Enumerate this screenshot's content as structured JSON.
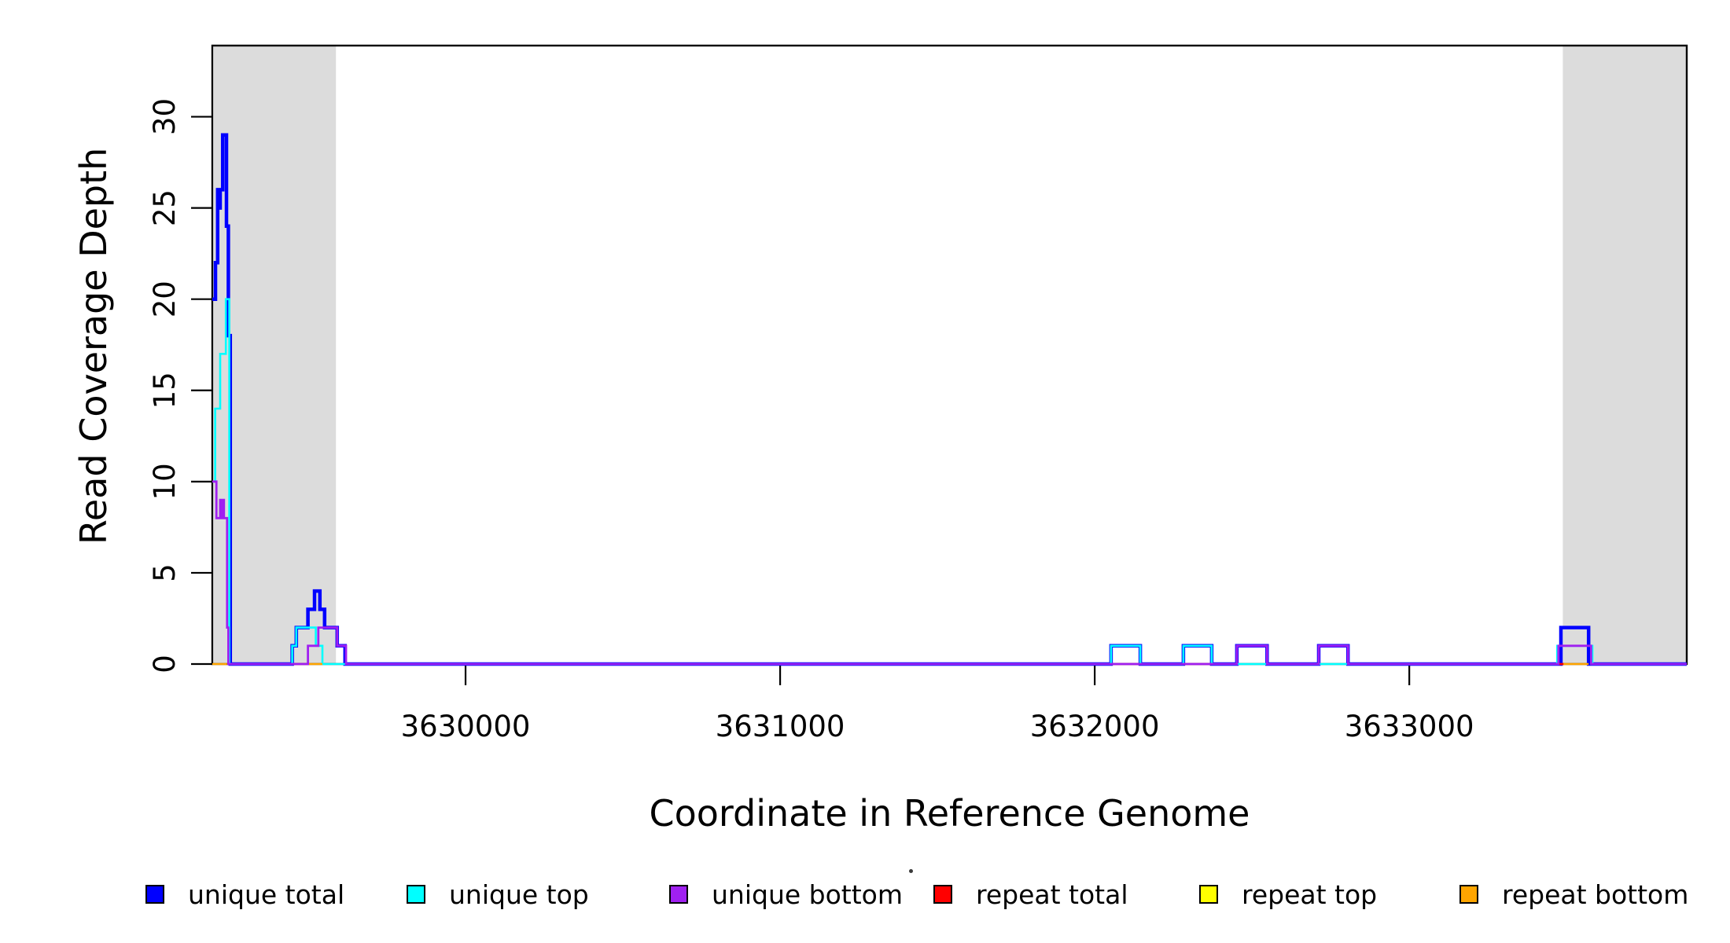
{
  "chart_data": {
    "type": "line",
    "subtype": "step-coverage",
    "title": "",
    "xlabel": "Coordinate in Reference Genome",
    "ylabel": "Read Coverage Depth",
    "xlim": [
      3629195,
      3633882
    ],
    "ylim": [
      0,
      33.9
    ],
    "grid": false,
    "legend_position": "bottom",
    "xticks": [
      {
        "value": 3630000,
        "label": "3630000"
      },
      {
        "value": 3631000,
        "label": "3631000"
      },
      {
        "value": 3632000,
        "label": "3632000"
      },
      {
        "value": 3633000,
        "label": "3633000"
      }
    ],
    "yticks": [
      {
        "value": 0,
        "label": "0"
      },
      {
        "value": 5,
        "label": "5"
      },
      {
        "value": 10,
        "label": "10"
      },
      {
        "value": 15,
        "label": "15"
      },
      {
        "value": 20,
        "label": "20"
      },
      {
        "value": 25,
        "label": "25"
      },
      {
        "value": 30,
        "label": "30"
      }
    ],
    "shaded_regions": [
      {
        "name": "left-repeat-region",
        "x1": 3629200,
        "x2": 3629588,
        "color": "#DCDCDC"
      },
      {
        "name": "right-repeat-region",
        "x1": 3633488,
        "x2": 3633880,
        "color": "#DCDCDC"
      }
    ],
    "series": [
      {
        "name": "unique total",
        "color": "#0000FF",
        "line_width": 4.5,
        "subpaths": [
          [
            [
              3629195,
              3629205,
              20
            ],
            [
              3629205,
              3629212,
              22
            ],
            [
              3629212,
              3629217,
              26
            ],
            [
              3629217,
              3629220,
              25
            ],
            [
              3629220,
              3629228,
              26
            ],
            [
              3629228,
              3629240,
              29
            ],
            [
              3629240,
              3629246,
              24
            ],
            [
              3629246,
              3629252,
              18
            ],
            [
              3629252,
              3629449,
              0
            ],
            [
              3629449,
              3629462,
              1
            ],
            [
              3629462,
              3629499,
              2
            ],
            [
              3629499,
              3629520,
              3
            ],
            [
              3629520,
              3629537,
              4
            ],
            [
              3629537,
              3629552,
              3
            ],
            [
              3629552,
              3629592,
              2
            ],
            [
              3629592,
              3629617,
              1
            ],
            [
              3629617,
              3632052,
              0
            ],
            [
              3632052,
              3632145,
              1
            ],
            [
              3632145,
              3632282,
              0
            ],
            [
              3632282,
              3632372,
              1
            ],
            [
              3632372,
              3632452,
              0
            ],
            [
              3632452,
              3632548,
              1
            ],
            [
              3632548,
              3632712,
              0
            ],
            [
              3632712,
              3632805,
              1
            ],
            [
              3632805,
              3633482,
              0
            ],
            [
              3633482,
              3633570,
              2
            ],
            [
              3633570,
              3633882,
              0
            ]
          ]
        ]
      },
      {
        "name": "unique top",
        "color": "#00FFFF",
        "line_width": 2.6,
        "subpaths": [
          [
            [
              3629195,
              3629204,
              10
            ],
            [
              3629204,
              3629220,
              14
            ],
            [
              3629220,
              3629238,
              17
            ],
            [
              3629238,
              3629249,
              20
            ],
            [
              3629249,
              3629449,
              0
            ],
            [
              3629449,
              3629462,
              1
            ],
            [
              3629462,
              3629524,
              2
            ],
            [
              3629524,
              3629545,
              1
            ],
            [
              3629545,
              3632052,
              0
            ],
            [
              3632052,
              3632145,
              1
            ],
            [
              3632145,
              3632282,
              0
            ],
            [
              3632282,
              3632372,
              1
            ],
            [
              3632372,
              3633470,
              0
            ],
            [
              3633470,
              3633582,
              1
            ],
            [
              3633582,
              3633882,
              0
            ]
          ]
        ]
      },
      {
        "name": "repeat total",
        "color": "#FF0000",
        "line_width": 2.6,
        "subpaths": [
          [
            [
              3629449,
              3629500,
              0
            ]
          ],
          [
            [
              3632052,
              3632145,
              0
            ]
          ],
          [
            [
              3632282,
              3632372,
              0
            ]
          ],
          [
            [
              3633472,
              3633492,
              0
            ]
          ]
        ]
      },
      {
        "name": "repeat top",
        "color": "#FFFF00",
        "line_width": 2.6,
        "subpaths": []
      },
      {
        "name": "repeat bottom",
        "color": "#FFA500",
        "line_width": 2.6,
        "subpaths": [
          [
            [
              3629195,
              3629242,
              0
            ]
          ],
          [
            [
              3629502,
              3629545,
              0
            ]
          ],
          [
            [
              3633490,
              3633570,
              0
            ]
          ]
        ]
      },
      {
        "name": "unique bottom",
        "color": "#A020F0",
        "line_width": 2.8,
        "subpaths": [
          [
            [
              3629195,
              3629208,
              10
            ],
            [
              3629208,
              3629220,
              8
            ],
            [
              3629220,
              3629222,
              9
            ],
            [
              3629222,
              3629225,
              8
            ],
            [
              3629225,
              3629227,
              9
            ],
            [
              3629227,
              3629230,
              8
            ],
            [
              3629230,
              3629232,
              9
            ],
            [
              3629232,
              3629242,
              8
            ],
            [
              3629242,
              3629246,
              2
            ],
            [
              3629246,
              3629499,
              0
            ],
            [
              3629499,
              3629532,
              1
            ],
            [
              3629532,
              3629592,
              2
            ],
            [
              3629592,
              3629620,
              1
            ],
            [
              3629620,
              3632452,
              0
            ],
            [
              3632452,
              3632548,
              1
            ],
            [
              3632548,
              3632712,
              0
            ],
            [
              3632712,
              3632805,
              1
            ],
            [
              3632805,
              3633474,
              0
            ],
            [
              3633474,
              3633578,
              1
            ],
            [
              3633578,
              3633882,
              0
            ]
          ]
        ]
      }
    ],
    "legend": [
      {
        "label": "unique total",
        "color": "#0000FF"
      },
      {
        "label": "unique top",
        "color": "#00FFFF"
      },
      {
        "label": "unique bottom",
        "color": "#A020F0"
      },
      {
        "label": "repeat total",
        "color": "#FF0000"
      },
      {
        "label": "repeat top",
        "color": "#FFFF00"
      },
      {
        "label": "repeat bottom",
        "color": "#FFA500"
      }
    ],
    "annotations": {
      "stray_dot": true
    }
  }
}
